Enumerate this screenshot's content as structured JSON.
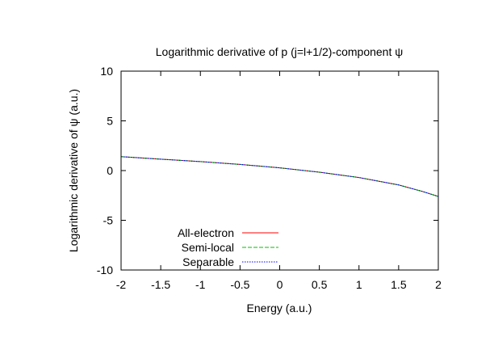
{
  "chart_data": {
    "type": "line",
    "title": "Logarithmic derivative of p (j=l+1/2)-component ψ",
    "xlabel": "Energy (a.u.)",
    "ylabel": "Logarithmic derivative of ψ (a.u.)",
    "xlim": [
      -2,
      2
    ],
    "ylim": [
      -10,
      10
    ],
    "xticks": [
      -2,
      -1.5,
      -1,
      -0.5,
      0,
      0.5,
      1,
      1.5,
      2
    ],
    "yticks": [
      -10,
      -5,
      0,
      5,
      10
    ],
    "grid": false,
    "legend_position": "bottom-left",
    "x": [
      -2.0,
      -1.5,
      -1.0,
      -0.5,
      0.0,
      0.5,
      1.0,
      1.5,
      1.8,
      2.0
    ],
    "series": [
      {
        "name": "All-electron",
        "color": "#ff0000",
        "dash": "solid",
        "values": [
          1.4,
          1.15,
          0.9,
          0.62,
          0.28,
          -0.16,
          -0.7,
          -1.45,
          -2.1,
          -2.6
        ]
      },
      {
        "name": "Semi-local",
        "color": "#00c000",
        "dash": "dashed",
        "values": [
          1.4,
          1.15,
          0.9,
          0.62,
          0.28,
          -0.16,
          -0.7,
          -1.45,
          -2.1,
          -2.6
        ]
      },
      {
        "name": "Separable",
        "color": "#0000ff",
        "dash": "dotted",
        "values": [
          1.4,
          1.15,
          0.9,
          0.62,
          0.28,
          -0.16,
          -0.7,
          -1.45,
          -2.1,
          -2.6
        ]
      }
    ]
  }
}
